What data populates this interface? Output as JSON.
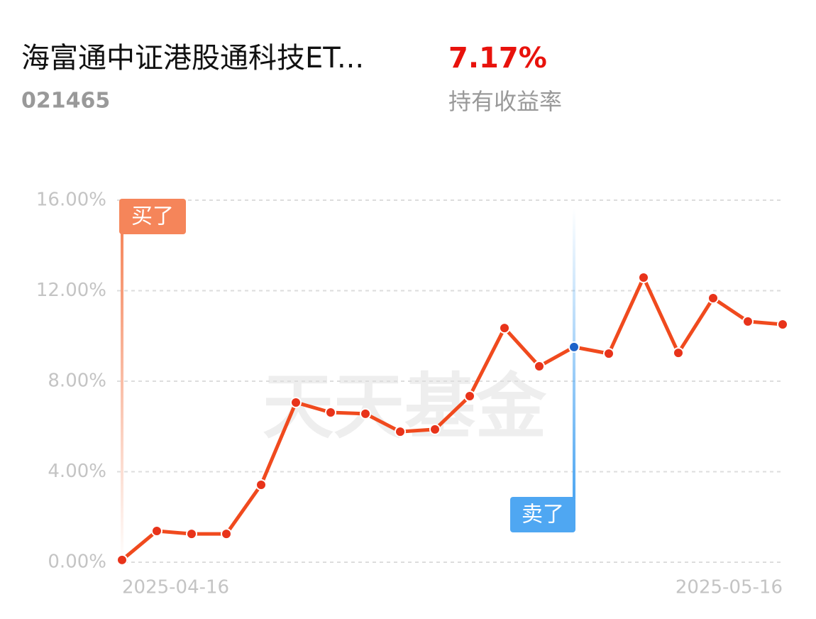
{
  "header": {
    "title": "海富通中证港股通科技ET...",
    "code": "021465",
    "return_value": "7.17%",
    "return_label": "持有收益率"
  },
  "chart_data": {
    "type": "line",
    "watermark": "天天基金",
    "categories": [
      "2025-04-16",
      null,
      null,
      null,
      null,
      null,
      null,
      null,
      null,
      null,
      null,
      null,
      null,
      null,
      null,
      null,
      null,
      null,
      null,
      "2025-05-16"
    ],
    "series": [
      {
        "color": "#f04a1e",
        "values": [
          0.1,
          1.38,
          1.25,
          1.25,
          3.42,
          7.06,
          6.62,
          6.56,
          5.77,
          5.87,
          7.34,
          10.35,
          8.66,
          9.51,
          9.22,
          12.58,
          9.25,
          11.67,
          10.64,
          10.51
        ]
      }
    ],
    "ylim": [
      0,
      16
    ],
    "yticks": [
      {
        "value": 0,
        "label": "0.00%"
      },
      {
        "value": 4,
        "label": "4.00%"
      },
      {
        "value": 8,
        "label": "8.00%"
      },
      {
        "value": 12,
        "label": "12.00%"
      },
      {
        "value": 16,
        "label": "16.00%"
      }
    ],
    "grid": true,
    "annotations": [
      {
        "text": "买了",
        "index": 0,
        "color": "#f5855a"
      },
      {
        "text": "卖了",
        "index": 13,
        "color": "#4fa7f2"
      }
    ]
  }
}
